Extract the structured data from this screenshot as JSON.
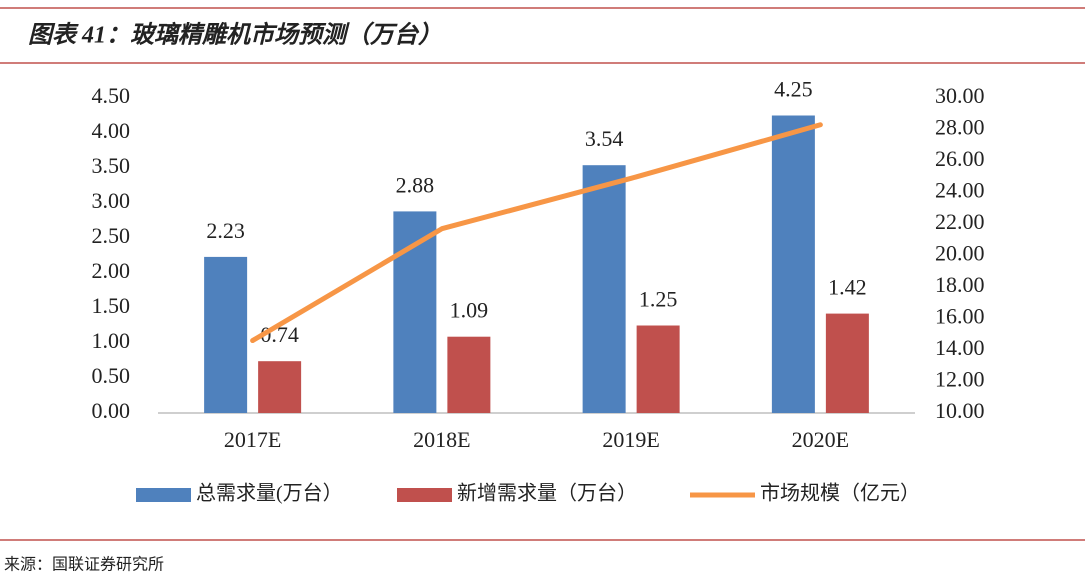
{
  "chart_data": {
    "type": "bar",
    "title": "图表 41：玻璃精雕机市场预测（万台）",
    "source": "来源：国联证券研究所",
    "categories": [
      "2017E",
      "2018E",
      "2019E",
      "2020E"
    ],
    "series": [
      {
        "name": "总需求量(万台）",
        "color": "#4f81bd",
        "type": "bar",
        "values": [
          2.23,
          2.88,
          3.54,
          4.25
        ]
      },
      {
        "name": "新增需求量（万台）",
        "color": "#c0504d",
        "type": "bar",
        "values": [
          0.74,
          1.09,
          1.25,
          1.42
        ]
      },
      {
        "name": "市场规模（亿元）",
        "color": "#f79646",
        "type": "line",
        "axis": "y2",
        "values": [
          14.6,
          21.7,
          24.9,
          28.3
        ]
      }
    ],
    "ylim": [
      0,
      4.5
    ],
    "yticks": [
      {
        "value": 0,
        "label": "0.00"
      },
      {
        "value": 0.5,
        "label": "0.50"
      },
      {
        "value": 1,
        "label": "1.00"
      },
      {
        "value": 1.5,
        "label": "1.50"
      },
      {
        "value": 2,
        "label": "2.00"
      },
      {
        "value": 2.5,
        "label": "2.50"
      },
      {
        "value": 3,
        "label": "3.00"
      },
      {
        "value": 3.5,
        "label": "3.50"
      },
      {
        "value": 4,
        "label": "4.00"
      },
      {
        "value": 4.5,
        "label": "4.50"
      }
    ],
    "y2lim": [
      10,
      30
    ],
    "y2ticks": [
      {
        "value": 10,
        "label": "10.00"
      },
      {
        "value": 12,
        "label": "12.00"
      },
      {
        "value": 14,
        "label": "14.00"
      },
      {
        "value": 16,
        "label": "16.00"
      },
      {
        "value": 18,
        "label": "18.00"
      },
      {
        "value": 20,
        "label": "20.00"
      },
      {
        "value": 22,
        "label": "22.00"
      },
      {
        "value": 24,
        "label": "24.00"
      },
      {
        "value": 26,
        "label": "26.00"
      },
      {
        "value": 28,
        "label": "28.00"
      },
      {
        "value": 30,
        "label": "30.00"
      }
    ],
    "grid": false,
    "legend": "bottom"
  }
}
